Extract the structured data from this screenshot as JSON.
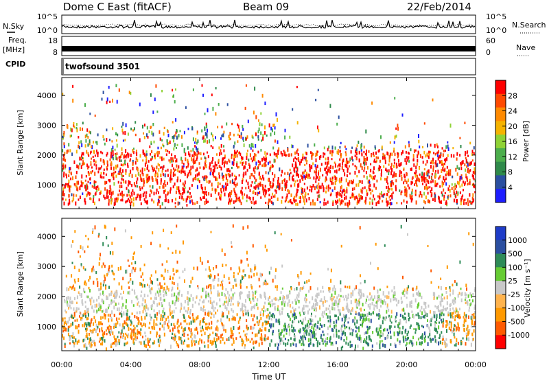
{
  "header": {
    "station": "Dome C East (fitACF)",
    "beam": "Beam 09",
    "date": "22/Feb/2014"
  },
  "left_labels": {
    "nsky": "N.Sky",
    "freq": "Freq.",
    "freq_unit": "[MHz]",
    "cpid": "CPID"
  },
  "right_labels": {
    "nsearch": "N.Search",
    "nave": "Nave"
  },
  "cpid_text": "twofsound 3501",
  "colors": {
    "power": [
      "#1e1eff",
      "#2b4fa0",
      "#2f8a4a",
      "#4cae4c",
      "#8fd235",
      "#f5b300",
      "#ff8a00",
      "#ff4a00",
      "#ff0000"
    ],
    "velocity": [
      "#ff0000",
      "#ff5a00",
      "#ff9900",
      "#ffb34d",
      "#c8c8c8",
      "#66cc33",
      "#2e8b57",
      "#2b4fa0",
      "#1e3cc8"
    ]
  },
  "chart_data": [
    {
      "type": "line",
      "name": "noise-panel",
      "left_ticks": [
        "10^5",
        "10^0"
      ],
      "right_ticks": [
        "10^5",
        "10^0"
      ],
      "xlim": [
        0,
        24
      ]
    },
    {
      "type": "line",
      "name": "freq-nave-panel",
      "left_ticks": [
        "18",
        "8"
      ],
      "right_ticks": [
        "60",
        "0"
      ],
      "xlim": [
        0,
        24
      ]
    },
    {
      "type": "heatmap",
      "name": "power",
      "ylabel": "Slant Range [km]",
      "ylim": [
        200,
        4600
      ],
      "y_ticks": [
        1000,
        2000,
        3000,
        4000
      ],
      "xlim": [
        0,
        24
      ],
      "colorbar_label": "Power [dB]",
      "colorbar_ticks": [
        "28",
        "24",
        "20",
        "16",
        "12",
        "8",
        "4"
      ]
    },
    {
      "type": "heatmap",
      "name": "velocity",
      "ylabel": "Slant Range [km]",
      "ylim": [
        200,
        4600
      ],
      "y_ticks": [
        1000,
        2000,
        3000,
        4000
      ],
      "xlim": [
        0,
        24
      ],
      "colorbar_label": "Velocity [m s⁻¹]",
      "colorbar_ticks": [
        "1000",
        "500",
        "100",
        "25",
        "-25",
        "-100",
        "-500",
        "-1000"
      ]
    }
  ],
  "x_axis": {
    "label": "Time UT",
    "ticks": [
      "00:00",
      "04:00",
      "08:00",
      "12:00",
      "16:00",
      "20:00",
      "00:00"
    ]
  }
}
